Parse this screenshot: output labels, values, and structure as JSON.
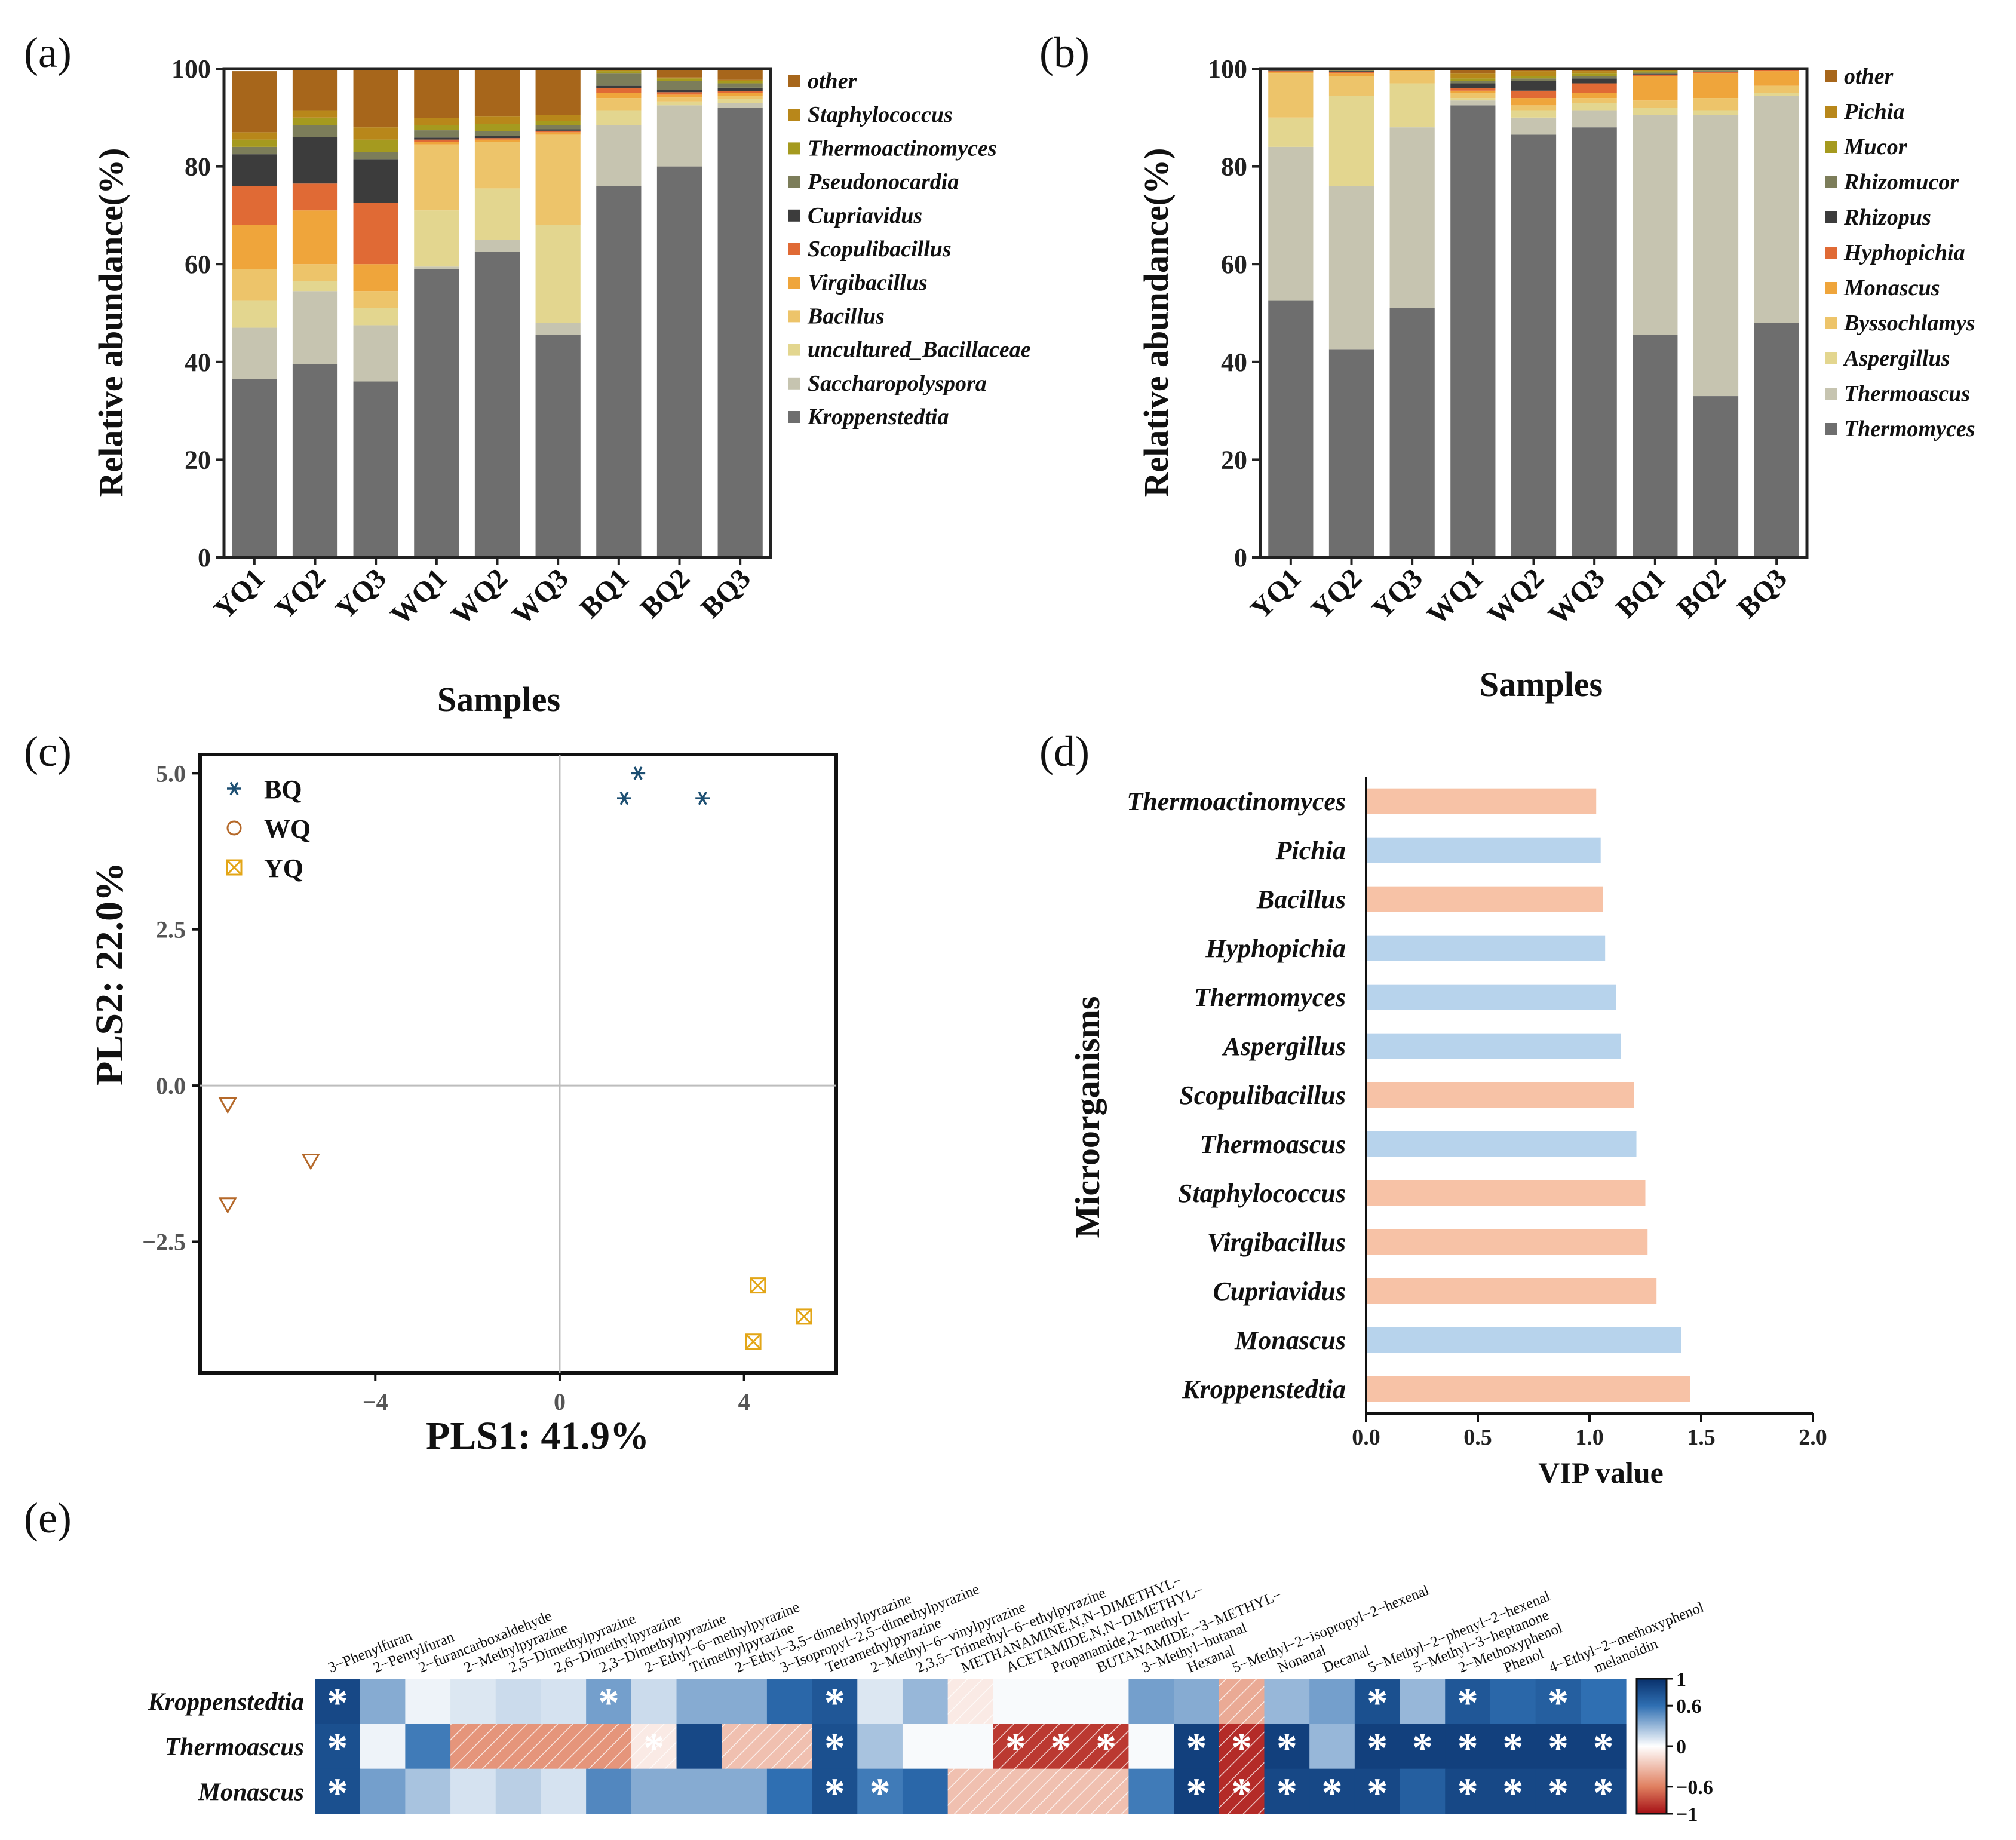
{
  "chart_data": [
    {
      "panel": "(a)",
      "type": "bar",
      "stacked": true,
      "xlabel": "Samples",
      "ylabel": "Relative abundance(%)",
      "ylim": [
        0,
        100
      ],
      "yticks": [
        "0",
        "20",
        "40",
        "60",
        "80",
        "100"
      ],
      "categories": [
        "YQ1",
        "YQ2",
        "YQ3",
        "WQ1",
        "WQ2",
        "WQ3",
        "BQ1",
        "BQ2",
        "BQ3"
      ],
      "legend_position": "right",
      "series": [
        {
          "name": "Kroppenstedtia",
          "color": "#6e6e6e",
          "values": [
            36.5,
            39.5,
            36.0,
            59.0,
            62.5,
            45.5,
            76.0,
            80.0,
            92.0
          ]
        },
        {
          "name": "Saccharopolyspora",
          "color": "#c6c4b0",
          "values": [
            10.5,
            15.0,
            11.5,
            0.5,
            2.5,
            2.5,
            12.5,
            12.5,
            1.0
          ]
        },
        {
          "name": "uncultured_Bacillaceae",
          "color": "#e3d68f",
          "values": [
            5.5,
            2.0,
            3.5,
            11.5,
            10.5,
            20.0,
            3.0,
            0.8,
            0.8
          ]
        },
        {
          "name": "Bacillus",
          "color": "#edc46a",
          "values": [
            6.5,
            3.5,
            3.5,
            13.5,
            9.5,
            18.5,
            2.5,
            0.8,
            0.7
          ]
        },
        {
          "name": "Virgibacillus",
          "color": "#efa53b",
          "values": [
            9.0,
            11.0,
            5.5,
            0.5,
            0.5,
            0.5,
            1.0,
            0.6,
            0.5
          ]
        },
        {
          "name": "Scopulibacillus",
          "color": "#e06a35",
          "values": [
            8.0,
            5.5,
            12.5,
            0.5,
            0.3,
            0.3,
            1.0,
            0.5,
            0.4
          ]
        },
        {
          "name": "Cupriavidus",
          "color": "#3c3c3c",
          "values": [
            6.5,
            9.5,
            9.0,
            0.4,
            0.4,
            0.3,
            0.5,
            0.5,
            0.7
          ]
        },
        {
          "name": "Pseudonocardia",
          "color": "#7c7d5a",
          "values": [
            1.5,
            2.5,
            1.5,
            1.5,
            1.0,
            0.9,
            2.5,
            1.8,
            0.9
          ]
        },
        {
          "name": "Thermoactinomyces",
          "color": "#a59a1f",
          "values": [
            1.5,
            1.5,
            2.5,
            1.0,
            1.5,
            0.8,
            0.5,
            0.5,
            0.5
          ]
        },
        {
          "name": "Staphylococcus",
          "color": "#b8871a",
          "values": [
            1.5,
            1.5,
            2.5,
            1.5,
            1.5,
            1.2,
            0.3,
            0.2,
            0.2
          ]
        },
        {
          "name": "other",
          "color": "#a7661b",
          "values": [
            12.5,
            8.5,
            12.5,
            10.1,
            9.8,
            9.5,
            0.2,
            1.8,
            2.3
          ]
        }
      ]
    },
    {
      "panel": "(b)",
      "type": "bar",
      "stacked": true,
      "xlabel": "Samples",
      "ylabel": "Relative abundance(%)",
      "ylim": [
        0,
        100
      ],
      "yticks": [
        "0",
        "20",
        "40",
        "60",
        "80",
        "100"
      ],
      "categories": [
        "YQ1",
        "YQ2",
        "YQ3",
        "WQ1",
        "WQ2",
        "WQ3",
        "BQ1",
        "BQ2",
        "BQ3"
      ],
      "legend_position": "right",
      "series": [
        {
          "name": "Thermomyces",
          "color": "#6e6e6e",
          "values": [
            52.5,
            42.5,
            51.0,
            92.5,
            86.5,
            88.0,
            45.5,
            33.0,
            48.0
          ]
        },
        {
          "name": "Thermoascus",
          "color": "#c6c4b0",
          "values": [
            31.5,
            33.5,
            37.0,
            1.0,
            3.5,
            3.5,
            45.0,
            57.5,
            46.5
          ]
        },
        {
          "name": "Aspergillus",
          "color": "#e3d68f",
          "values": [
            6.0,
            18.5,
            9.0,
            0.5,
            1.5,
            1.5,
            1.5,
            1.0,
            0.5
          ]
        },
        {
          "name": "Byssochlamys",
          "color": "#edc46a",
          "values": [
            9.0,
            4.0,
            2.5,
            1.0,
            1.0,
            1.0,
            1.5,
            2.5,
            1.5
          ]
        },
        {
          "name": "Monascus",
          "color": "#efa53b",
          "values": [
            0.3,
            0.5,
            0.3,
            0.5,
            1.5,
            1.0,
            5.0,
            5.0,
            3.0
          ]
        },
        {
          "name": "Hyphopichia",
          "color": "#e06a35",
          "values": [
            0.2,
            0.3,
            0.2,
            0.5,
            1.5,
            2.0,
            0.3,
            0.3,
            0.2
          ]
        },
        {
          "name": "Rhizopus",
          "color": "#3c3c3c",
          "values": [
            0.1,
            0.2,
            0.1,
            1.0,
            2.0,
            1.0,
            0.1,
            0.1,
            0.1
          ]
        },
        {
          "name": "Rhizomucor",
          "color": "#7c7d5a",
          "values": [
            0.1,
            0.1,
            0.1,
            0.5,
            0.5,
            0.5,
            0.3,
            0.2,
            0.1
          ]
        },
        {
          "name": "Mucor",
          "color": "#a59a1f",
          "values": [
            0.1,
            0.1,
            0.1,
            0.5,
            0.5,
            0.5,
            0.3,
            0.2,
            0.1
          ]
        },
        {
          "name": "Pichia",
          "color": "#b8871a",
          "values": [
            0.1,
            0.1,
            0.1,
            1.0,
            1.0,
            0.5,
            0.2,
            0.1,
            0.0
          ]
        },
        {
          "name": "other",
          "color": "#a7661b",
          "values": [
            0.1,
            0.2,
            0.1,
            1.0,
            0.5,
            0.5,
            0.3,
            0.1,
            0.0
          ]
        }
      ]
    },
    {
      "panel": "(c)",
      "type": "scatter",
      "xlabel": "PLS1: 41.9%",
      "ylabel": "PLS2: 22.0%",
      "xlim": [
        -7.8,
        6.0
      ],
      "ylim": [
        -4.6,
        5.3
      ],
      "xticks": [
        -4,
        0,
        4
      ],
      "xtick_labels": [
        "−4",
        "0",
        "4"
      ],
      "yticks": [
        5.0,
        2.5,
        0.0,
        -2.5
      ],
      "ytick_labels": [
        "5.0",
        "2.5",
        "0.0",
        "−2.5"
      ],
      "legend_position": "top-left",
      "series": [
        {
          "name": "BQ",
          "marker": "asterisk",
          "color": "#1d4f72",
          "points": [
            [
              1.4,
              4.6
            ],
            [
              1.7,
              5.0
            ],
            [
              3.1,
              4.6
            ]
          ]
        },
        {
          "name": "WQ",
          "marker": "triangle-down",
          "legend_marker": "circle",
          "color": "#b5692a",
          "points": [
            [
              -7.2,
              -0.3
            ],
            [
              -5.4,
              -1.2
            ],
            [
              -7.2,
              -1.9
            ]
          ]
        },
        {
          "name": "YQ",
          "marker": "boxed-x",
          "color": "#e3a617",
          "points": [
            [
              4.3,
              -3.2
            ],
            [
              5.3,
              -3.7
            ],
            [
              4.2,
              -4.1
            ]
          ]
        }
      ]
    },
    {
      "panel": "(d)",
      "type": "bar",
      "orientation": "horizontal",
      "xlabel": "VIP value",
      "ylabel": "Microorganisms",
      "xlim": [
        0.0,
        2.0
      ],
      "xticks": [
        "0.0",
        "0.5",
        "1.0",
        "1.5",
        "2.0"
      ],
      "categories": [
        "Thermoactinomyces",
        "Pichia",
        "Bacillus",
        "Hyphopichia",
        "Thermomyces",
        "Aspergillus",
        "Scopulibacillus",
        "Thermoascus",
        "Staphylococcus",
        "Virgibacillus",
        "Cupriavidus",
        "Monascus",
        "Kroppenstedtia"
      ],
      "values": [
        1.03,
        1.05,
        1.06,
        1.07,
        1.12,
        1.14,
        1.2,
        1.21,
        1.25,
        1.26,
        1.3,
        1.41,
        1.45
      ],
      "colors": [
        "#f7c2a6",
        "#b7d3ec",
        "#f7c2a6",
        "#b7d3ec",
        "#b7d3ec",
        "#b7d3ec",
        "#f7c2a6",
        "#b7d3ec",
        "#f7c2a6",
        "#f7c2a6",
        "#f7c2a6",
        "#b7d3ec",
        "#f7c2a6"
      ]
    },
    {
      "panel": "(e)",
      "type": "heatmap",
      "columns": [
        "3−Phenylfuran",
        "2−Pentylfuran",
        "2−furancarboxaldehyde",
        "2−Methylpyrazine",
        "2,5−Dimethylpyrazine",
        "2,6−Dimethylpyrazine",
        "2,3−Dimethylpyrazine",
        "2−Ethyl−6−methylpyrazine",
        "Trimethylpyrazine",
        "2−Ethyl−3,5−dimethylpyrazine",
        "3−Isopropyl−2,5−dimethylpyrazine",
        "Tetramethylpyrazine",
        "2−Methyl−6−vinylpyrazine",
        "2,3,5−Trimethyl−6−ethylpyrazine",
        "METHANAMINE,N,N−DIMETHYL−",
        "ACETAMIDE,N,N−DIMETHYL−",
        "Propanamide,2−methyl−",
        "BUTANAMIDE,−3−METHYL−",
        "3−Methyl−butanal",
        "Hexanal",
        "5−Methyl−2−isopropyl−2−hexenal",
        "Nonanal",
        "Decanal",
        "5−Methyl−2−phenyl−2−hexenal",
        "5−Methyl−3−heptanone",
        "2−Methoxyphenol",
        "Phenol",
        "4−Ethyl−2−methoxyphenol",
        "melanoidin"
      ],
      "rows": [
        "Kroppenstedtia",
        "Thermoascus",
        "Monascus"
      ],
      "values": [
        [
          0.85,
          0.35,
          0.05,
          0.1,
          0.15,
          0.12,
          0.4,
          0.15,
          0.35,
          0.35,
          0.65,
          0.75,
          0.1,
          0.3,
          -0.1,
          0.02,
          0.02,
          0.02,
          0.4,
          0.35,
          -0.4,
          0.3,
          0.4,
          0.8,
          0.3,
          0.75,
          0.65,
          0.7,
          0.6
        ],
        [
          0.8,
          0.05,
          0.55,
          -0.5,
          -0.5,
          -0.5,
          -0.5,
          -0.1,
          0.85,
          -0.3,
          -0.3,
          0.8,
          0.25,
          0.02,
          0.02,
          -0.85,
          -0.85,
          -0.85,
          0.02,
          0.9,
          -0.9,
          0.9,
          0.3,
          0.9,
          0.9,
          0.9,
          0.9,
          0.9,
          0.9
        ],
        [
          0.8,
          0.4,
          0.25,
          0.12,
          0.2,
          0.12,
          0.5,
          0.35,
          0.35,
          0.35,
          0.6,
          0.8,
          0.55,
          0.65,
          -0.3,
          -0.3,
          -0.3,
          -0.3,
          0.55,
          0.9,
          -0.9,
          0.85,
          0.85,
          0.85,
          0.7,
          0.85,
          0.85,
          0.85,
          0.85
        ]
      ],
      "significance": [
        [
          true,
          false,
          false,
          false,
          false,
          false,
          true,
          false,
          false,
          false,
          false,
          true,
          false,
          false,
          false,
          false,
          false,
          false,
          false,
          false,
          false,
          false,
          false,
          true,
          false,
          true,
          false,
          true,
          false
        ],
        [
          true,
          false,
          false,
          false,
          false,
          false,
          false,
          true,
          false,
          false,
          false,
          true,
          false,
          false,
          false,
          true,
          true,
          true,
          false,
          true,
          true,
          true,
          false,
          true,
          true,
          true,
          true,
          true,
          true
        ],
        [
          true,
          false,
          false,
          false,
          false,
          false,
          false,
          false,
          false,
          false,
          false,
          true,
          true,
          false,
          false,
          false,
          false,
          false,
          false,
          true,
          true,
          true,
          true,
          true,
          false,
          true,
          true,
          true,
          true
        ]
      ],
      "colorbar_ticks": [
        "1",
        "0.6",
        "0",
        "−0.6",
        "−1"
      ],
      "color_range": [
        -1,
        1
      ]
    }
  ]
}
